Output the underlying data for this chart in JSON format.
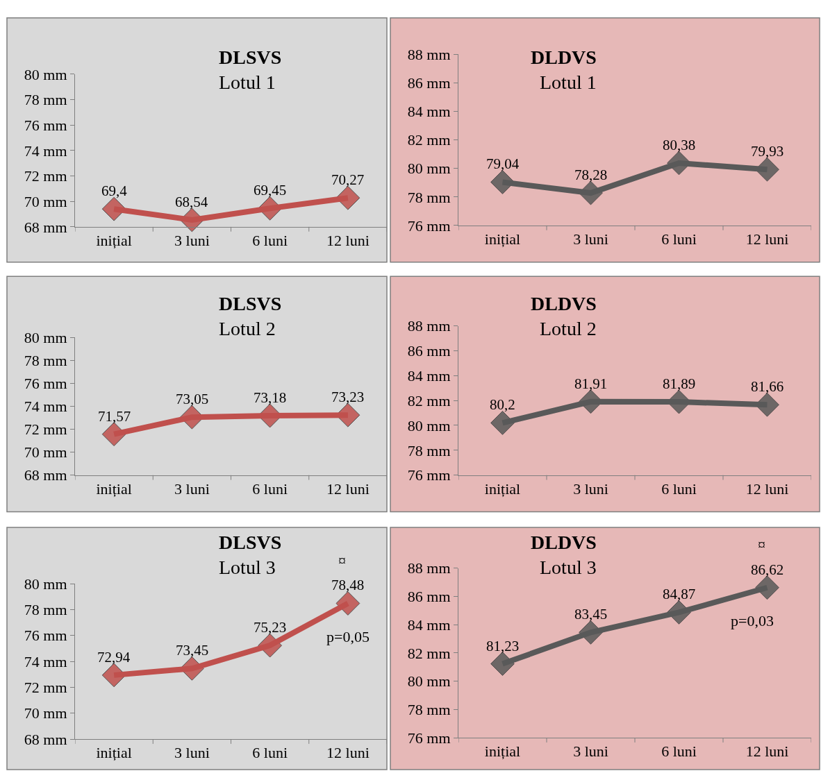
{
  "chart_data": [
    {
      "type": "line",
      "title": "DLSVS",
      "subtitle": "Lotul 1",
      "categories": [
        "inițial",
        "3 luni",
        "6 luni",
        "12 luni"
      ],
      "values": [
        69.4,
        68.54,
        69.45,
        70.27
      ],
      "value_labels": [
        "69,4",
        "68,54",
        "69,45",
        "70,27"
      ],
      "color": "#c0504d",
      "marker": "diamond",
      "ylim": [
        68,
        80
      ],
      "yticks": [
        {
          "value": 68,
          "label": "68 mm"
        },
        {
          "value": 70,
          "label": "70 mm"
        },
        {
          "value": 72,
          "label": "72 mm"
        },
        {
          "value": 74,
          "label": "74 mm"
        },
        {
          "value": 76,
          "label": "76 mm"
        },
        {
          "value": 78,
          "label": "78 mm"
        },
        {
          "value": 80,
          "label": "80 mm"
        }
      ],
      "grid": false
    },
    {
      "type": "line",
      "title": "DLDVS",
      "subtitle": "Lotul 1",
      "categories": [
        "inițial",
        "3 luni",
        "6 luni",
        "12 luni"
      ],
      "values": [
        79.04,
        78.28,
        80.38,
        79.93
      ],
      "value_labels": [
        "79,04",
        "78,28",
        "80,38",
        "79,93"
      ],
      "color": "#595959",
      "marker": "diamond",
      "ylim": [
        76,
        88
      ],
      "yticks": [
        {
          "value": 76,
          "label": "76 mm"
        },
        {
          "value": 78,
          "label": "78 mm"
        },
        {
          "value": 80,
          "label": "80 mm"
        },
        {
          "value": 82,
          "label": "82 mm"
        },
        {
          "value": 84,
          "label": "84 mm"
        },
        {
          "value": 86,
          "label": "86 mm"
        },
        {
          "value": 88,
          "label": "88 mm"
        }
      ],
      "grid": false
    },
    {
      "type": "line",
      "title": "DLSVS",
      "subtitle": "Lotul 2",
      "categories": [
        "inițial",
        "3 luni",
        "6 luni",
        "12 luni"
      ],
      "values": [
        71.57,
        73.05,
        73.18,
        73.23
      ],
      "value_labels": [
        "71,57",
        "73,05",
        "73,18",
        "73,23"
      ],
      "color": "#c0504d",
      "marker": "diamond",
      "ylim": [
        68,
        80
      ],
      "yticks": [
        {
          "value": 68,
          "label": "68 mm"
        },
        {
          "value": 70,
          "label": "70 mm"
        },
        {
          "value": 72,
          "label": "72 mm"
        },
        {
          "value": 74,
          "label": "74 mm"
        },
        {
          "value": 76,
          "label": "76 mm"
        },
        {
          "value": 78,
          "label": "78 mm"
        },
        {
          "value": 80,
          "label": "80 mm"
        }
      ],
      "grid": false
    },
    {
      "type": "line",
      "title": "DLDVS",
      "subtitle": "Lotul 2",
      "categories": [
        "inițial",
        "3 luni",
        "6 luni",
        "12 luni"
      ],
      "values": [
        80.2,
        81.91,
        81.89,
        81.66
      ],
      "value_labels": [
        "80,2",
        "81,91",
        "81,89",
        "81,66"
      ],
      "color": "#595959",
      "marker": "diamond",
      "ylim": [
        76,
        88
      ],
      "yticks": [
        {
          "value": 76,
          "label": "76 mm"
        },
        {
          "value": 78,
          "label": "78 mm"
        },
        {
          "value": 80,
          "label": "80 mm"
        },
        {
          "value": 82,
          "label": "82 mm"
        },
        {
          "value": 84,
          "label": "84 mm"
        },
        {
          "value": 86,
          "label": "86 mm"
        },
        {
          "value": 88,
          "label": "88 mm"
        }
      ],
      "grid": false
    },
    {
      "type": "line",
      "title": "DLSVS",
      "subtitle": "Lotul 3",
      "categories": [
        "inițial",
        "3 luni",
        "6 luni",
        "12 luni"
      ],
      "values": [
        72.94,
        73.45,
        75.23,
        78.48
      ],
      "value_labels": [
        "72,94",
        "73,45",
        "75,23",
        "78,48"
      ],
      "color": "#c0504d",
      "marker": "diamond",
      "ylim": [
        68,
        80
      ],
      "yticks": [
        {
          "value": 68,
          "label": "68 mm"
        },
        {
          "value": 70,
          "label": "70 mm"
        },
        {
          "value": 72,
          "label": "72 mm"
        },
        {
          "value": 74,
          "label": "74 mm"
        },
        {
          "value": 76,
          "label": "76 mm"
        },
        {
          "value": 78,
          "label": "78 mm"
        },
        {
          "value": 80,
          "label": "80 mm"
        }
      ],
      "grid": false,
      "annotations": [
        {
          "text": "¤",
          "x": "12 luni",
          "y": 78.48
        },
        {
          "text": "p=0,05",
          "x": "12 luni",
          "y": 78.48
        }
      ]
    },
    {
      "type": "line",
      "title": "DLDVS",
      "subtitle": "Lotul 3",
      "categories": [
        "inițial",
        "3 luni",
        "6 luni",
        "12 luni"
      ],
      "values": [
        81.23,
        83.45,
        84.87,
        86.62
      ],
      "value_labels": [
        "81,23",
        "83,45",
        "84,87",
        "86,62"
      ],
      "color": "#595959",
      "marker": "diamond",
      "ylim": [
        76,
        88
      ],
      "yticks": [
        {
          "value": 76,
          "label": "76 mm"
        },
        {
          "value": 78,
          "label": "78 mm"
        },
        {
          "value": 80,
          "label": "80 mm"
        },
        {
          "value": 82,
          "label": "82 mm"
        },
        {
          "value": 84,
          "label": "84 mm"
        },
        {
          "value": 86,
          "label": "86 mm"
        },
        {
          "value": 88,
          "label": "88 mm"
        }
      ],
      "grid": false,
      "annotations": [
        {
          "text": "¤",
          "x": "12 luni",
          "y": 86.62
        },
        {
          "text": "p=0,03",
          "x": "12 luni",
          "y": 86.62
        }
      ]
    }
  ]
}
